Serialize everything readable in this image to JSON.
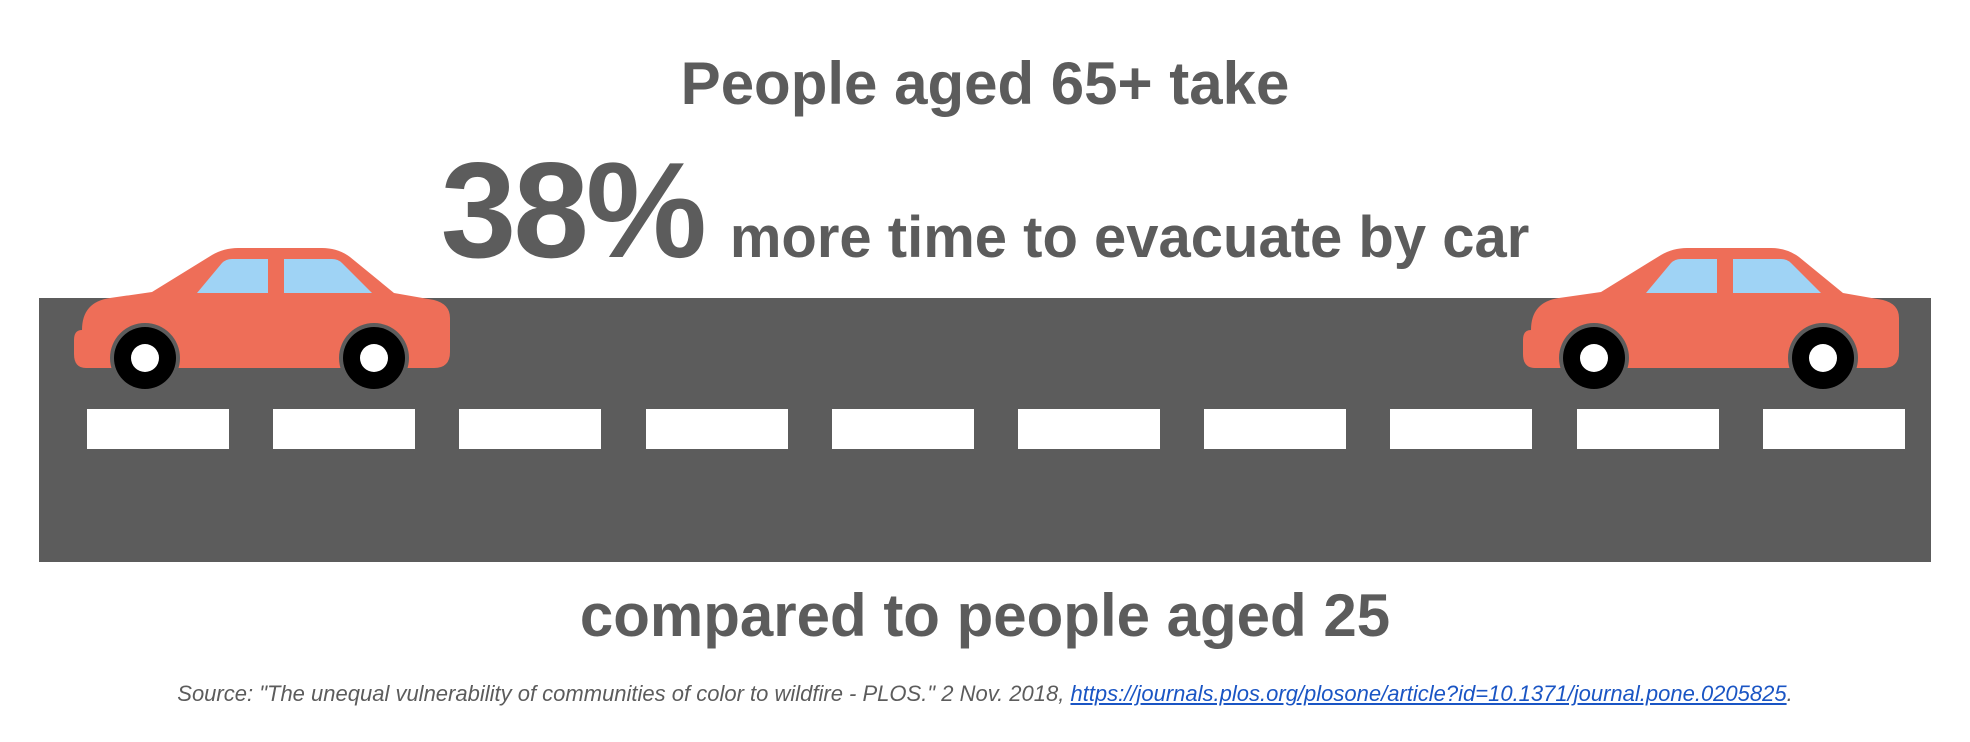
{
  "headline": {
    "top": "People aged 65+ take",
    "stat_value": "38%",
    "stat_text": "more time to evacuate by car",
    "bottom": "compared to people aged 25"
  },
  "source": {
    "text": "Source: \"The unequal vulnerability of communities of color to wildfire - PLOS.\" 2 Nov. 2018, ",
    "link": "https://journals.plos.org/plosone/article?id=10.1371/journal.pone.0205825",
    "end": "."
  },
  "colors": {
    "text": "#5c5c5c",
    "road": "#5c5c5c",
    "lane_marking": "#ffffff",
    "car_body": "#ee6e58",
    "car_window": "#9fd3f5",
    "tire": "#000000",
    "hubcap": "#ffffff",
    "link": "#1a55c4"
  },
  "icons": [
    "car-icon-left",
    "car-icon-right"
  ]
}
